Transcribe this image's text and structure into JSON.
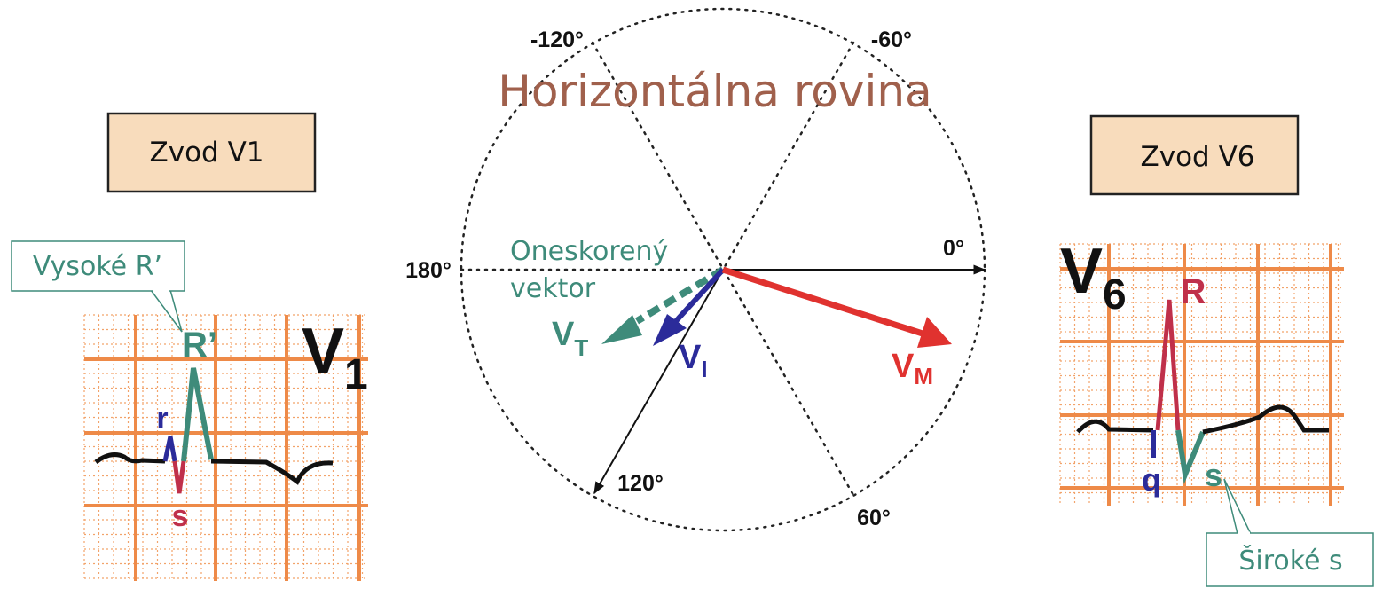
{
  "leads": [
    {
      "label": "Zvod V1"
    },
    {
      "label": "Zvod V6"
    }
  ],
  "title": "Horizontálna rovina",
  "axis_labels": [
    "-120°",
    "-60°",
    "0°",
    "60°",
    "120°",
    "180°"
  ],
  "vector_note": [
    "Oneskorený",
    "vektor"
  ],
  "vectors": [
    {
      "main": "V",
      "sub": "T"
    },
    {
      "main": "V",
      "sub": "I"
    },
    {
      "main": "V",
      "sub": "M"
    }
  ],
  "v1": {
    "callout": "Vysoké R’",
    "lead": {
      "main": "V",
      "sub": "1"
    },
    "waves": [
      "R’",
      "r",
      "s"
    ]
  },
  "v6": {
    "callout": "Široké s",
    "lead": {
      "main": "V",
      "sub": "6"
    },
    "waves": [
      "R",
      "q",
      "s"
    ]
  }
}
